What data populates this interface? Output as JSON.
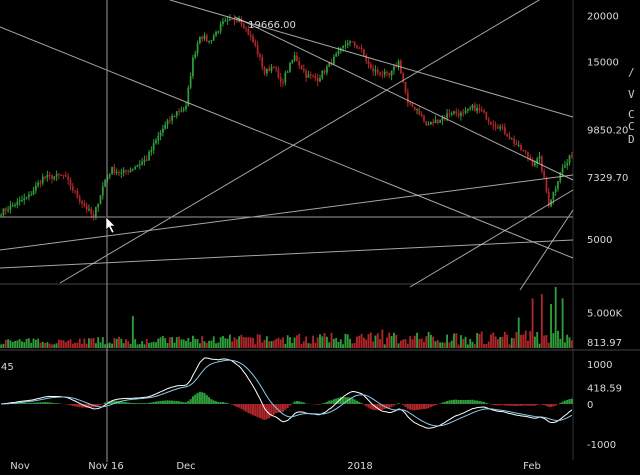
{
  "chart_data": {
    "type": "candlestick",
    "grid": false,
    "colors": {
      "up": "#2f9e3a",
      "down": "#b0262a",
      "macd_line": "#ffffff",
      "signal_line": "#8ec9e8",
      "trendline": "#d0d0d0",
      "crosshair": "#9a9a9a",
      "background": "#000000"
    },
    "top_left_label": "45",
    "x_tick_labels": [
      "Nov",
      "Nov 16",
      "Dec",
      "2018",
      "Feb"
    ],
    "price_panel": {
      "scale": "log",
      "ylim": [
        3800,
        22000
      ],
      "tick_labels": [
        "20000",
        "15000",
        "9850.20",
        "7329.70",
        "5000"
      ],
      "peak_annotation": "19666.00"
    },
    "volume_panel": {
      "ylim": [
        0,
        8600
      ],
      "tick_labels": [
        "5.000K",
        "813.97"
      ]
    },
    "macd_panel": {
      "ylim": [
        -1300,
        1300
      ],
      "tick_labels": [
        "1000",
        "418.59",
        "0",
        "-1000"
      ]
    },
    "side_letters": [
      "/",
      "V",
      "C",
      "C",
      "D"
    ],
    "anchors": {
      "days": [
        0,
        12,
        18,
        27,
        33,
        40,
        45,
        48,
        52,
        56,
        63,
        70,
        76,
        80,
        83,
        86,
        90,
        96,
        103,
        110,
        114,
        118,
        121,
        127,
        132,
        137,
        140,
        143,
        146,
        150,
        155,
        160,
        168,
        172,
        176,
        180,
        184,
        190,
        195,
        200,
        204,
        208,
        212,
        216,
        220,
        224,
        227,
        230,
        233,
        237,
        240,
        242,
        245,
        247
      ],
      "close": [
        5900,
        6500,
        7300,
        7400,
        6500,
        5700,
        7200,
        7700,
        7500,
        7700,
        8200,
        9900,
        11000,
        11300,
        15200,
        17700,
        17000,
        19000,
        19666,
        16500,
        14000,
        14700,
        13000,
        15500,
        13800,
        13500,
        14200,
        15000,
        15800,
        17000,
        16400,
        14300,
        13700,
        15000,
        11500,
        11200,
        10100,
        10500,
        11000,
        10800,
        11300,
        11000,
        10300,
        10000,
        9400,
        8800,
        8500,
        8000,
        8200,
        6200,
        6900,
        7600,
        8000,
        8500
      ]
    },
    "volume_spikes": [
      {
        "day": 57,
        "value": 4500
      },
      {
        "day": 165,
        "value": 2600
      },
      {
        "day": 224,
        "value": 4300
      },
      {
        "day": 230,
        "value": 7000
      },
      {
        "day": 234,
        "value": 7600
      },
      {
        "day": 238,
        "value": 6200
      },
      {
        "day": 240,
        "value": 8600
      },
      {
        "day": 243,
        "value": 7000
      }
    ]
  }
}
